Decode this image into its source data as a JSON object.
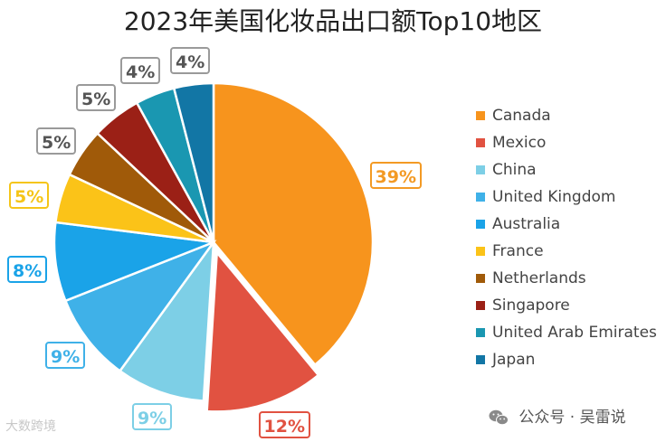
{
  "chart_data": {
    "type": "pie",
    "title": "2023年美国化妆品出口额Top10地区",
    "categories": [
      "Canada",
      "Mexico",
      "China",
      "United Kingdom",
      "Australia",
      "France",
      "Netherlands",
      "Singapore",
      "United Arab Emirates",
      "Japan"
    ],
    "values": [
      39,
      12,
      9,
      9,
      8,
      5,
      5,
      5,
      4,
      4
    ],
    "data_labels": [
      "39%",
      "12%",
      "9%",
      "9%",
      "8%",
      "5%",
      "5%",
      "5%",
      "4%",
      "4%"
    ],
    "colors": [
      "#F7941D",
      "#E15241",
      "#7DCFE6",
      "#3FB1E8",
      "#1AA3E8",
      "#FBC318",
      "#A05A09",
      "#9B2016",
      "#1A97B1",
      "#1276A5"
    ],
    "label_border_colors": [
      "#F39A24",
      "#E15241",
      "#7DCFE6",
      "#3FB1E8",
      "#1AA3E8",
      "#F5C518",
      "#9a9a9a",
      "#9a9a9a",
      "#9a9a9a",
      "#9a9a9a"
    ],
    "label_text_colors": [
      "#F39A24",
      "#E15241",
      "#7DCFE6",
      "#3FB1E8",
      "#1AA3E8",
      "#F5C518",
      "#555555",
      "#555555",
      "#555555",
      "#555555"
    ],
    "exploded_slice": "Mexico",
    "legend_position": "right"
  },
  "watermarks": {
    "left": "大数跨境",
    "right": "公众号 · 吴雷说"
  }
}
